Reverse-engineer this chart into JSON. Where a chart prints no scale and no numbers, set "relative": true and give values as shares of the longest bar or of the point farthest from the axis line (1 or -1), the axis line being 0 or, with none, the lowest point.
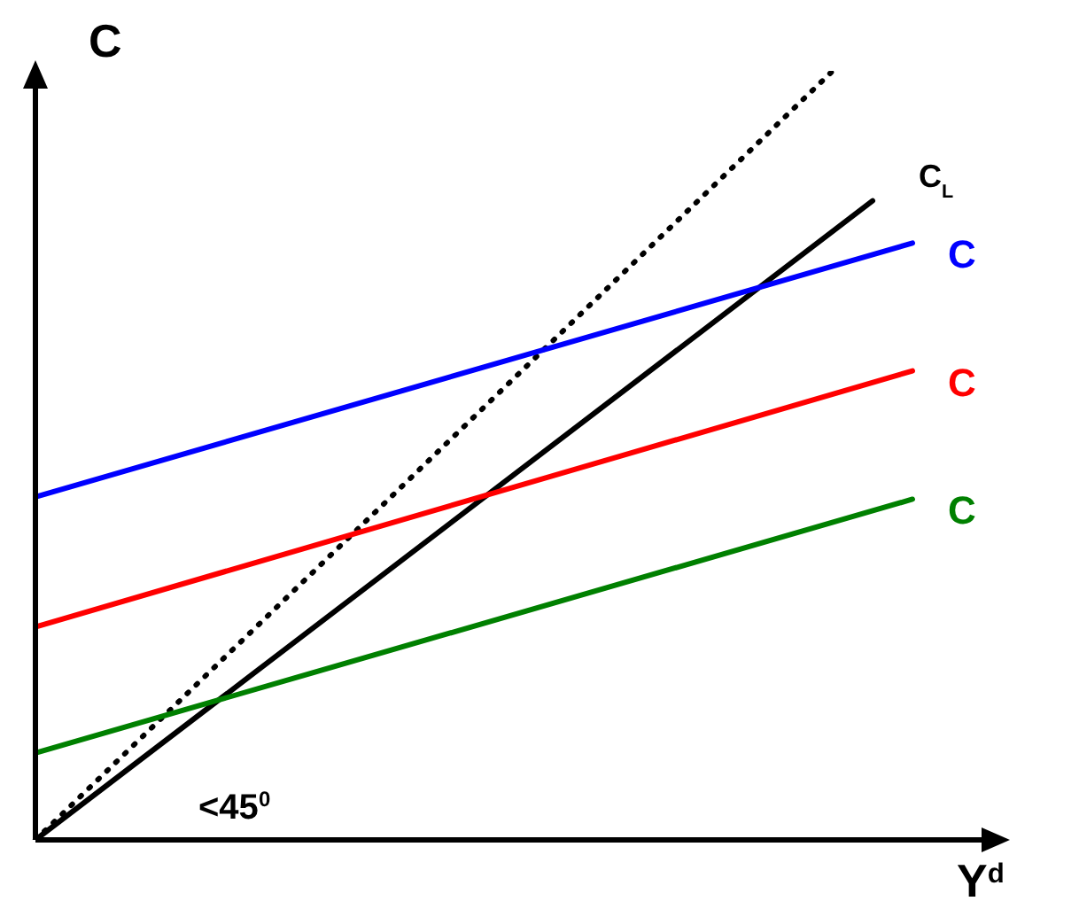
{
  "chart_data": {
    "type": "line",
    "relative": true,
    "xlabel": "Y$^{d}$",
    "ylabel": "C",
    "annotations": [
      "<45$^{0}$"
    ],
    "legend": false,
    "marker": "none",
    "categories": [
      null,
      null,
      null,
      null,
      null,
      null,
      null,
      null,
      null,
      null,
      null,
      null,
      null,
      null,
      null,
      null,
      null,
      null,
      null,
      null,
      null,
      null,
      null,
      null,
      null
    ],
    "series": [
      {
        "color": "#000000",
        "line_style": "dotted",
        "values": [
          0,
          null,
          null,
          null,
          null,
          null,
          null,
          null,
          null,
          null,
          null,
          null,
          null,
          null,
          null,
          null,
          null,
          null,
          null,
          null,
          1,
          null,
          null,
          null,
          null
        ]
      },
      {
        "name": "C$_{L}$",
        "color": "#000000",
        "line_style": "solid",
        "values": [
          0,
          null,
          null,
          null,
          null,
          null,
          null,
          null,
          null,
          null,
          null,
          null,
          null,
          null,
          null,
          null,
          null,
          null,
          null,
          null,
          null,
          0.831,
          null,
          null,
          null
        ]
      },
      {
        "name": "C",
        "color": "#0000ff",
        "line_style": "solid",
        "values": [
          0.446,
          null,
          null,
          null,
          null,
          null,
          null,
          null,
          null,
          null,
          null,
          null,
          null,
          null,
          null,
          null,
          null,
          null,
          null,
          null,
          null,
          null,
          0.776,
          null,
          null
        ]
      },
      {
        "name": "C",
        "color": "#ff0000",
        "line_style": "solid",
        "values": [
          0.277,
          null,
          null,
          null,
          null,
          null,
          null,
          null,
          null,
          null,
          null,
          null,
          null,
          null,
          null,
          null,
          null,
          null,
          null,
          null,
          null,
          null,
          0.61,
          null,
          null
        ]
      },
      {
        "name": "C",
        "color": "#008000",
        "line_style": "solid",
        "values": [
          0.113,
          null,
          null,
          null,
          null,
          null,
          null,
          null,
          null,
          null,
          null,
          null,
          null,
          null,
          null,
          null,
          null,
          null,
          null,
          null,
          null,
          null,
          0.443,
          null,
          null
        ]
      }
    ]
  }
}
